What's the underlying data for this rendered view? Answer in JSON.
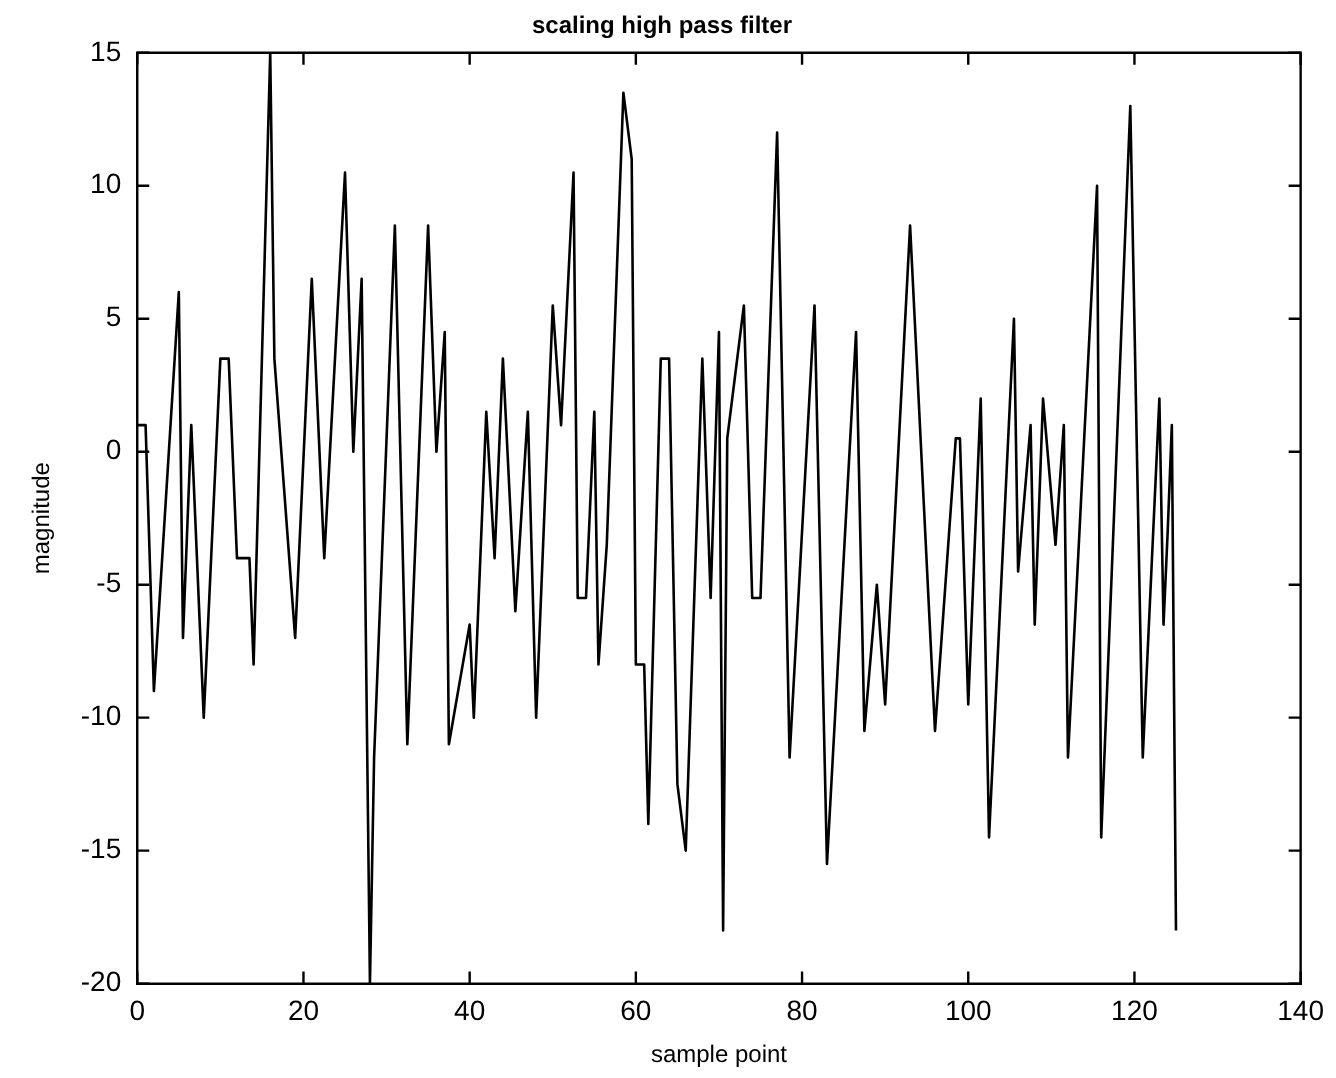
{
  "chart_data": {
    "type": "line",
    "title": "scaling high pass filter",
    "xlabel": "sample point",
    "ylabel": "magnitude",
    "x": [
      0,
      1,
      2,
      5,
      5.5,
      6.5,
      8,
      10,
      11,
      12,
      13.5,
      14,
      16,
      16.5,
      19,
      21,
      22.5,
      25,
      26,
      27,
      28,
      28.5,
      31,
      32.5,
      35,
      36,
      37,
      37.5,
      40,
      40.5,
      42,
      43,
      44,
      45.5,
      47,
      48,
      50,
      51,
      52.5,
      53,
      54,
      55,
      55.5,
      56.5,
      58.5,
      59.5,
      60,
      61,
      61.5,
      63,
      64,
      65,
      66,
      68,
      69,
      70,
      70.5,
      71,
      73,
      74,
      75,
      77,
      78.5,
      81.5,
      83,
      86.5,
      87.5,
      89,
      90,
      93,
      96,
      98.5,
      99,
      100,
      101.5,
      102.5,
      105.5,
      106,
      107.5,
      108,
      109,
      110.5,
      111.5,
      112,
      115.5,
      116,
      119.5,
      121,
      123,
      123.5,
      124,
      124.5,
      125
    ],
    "series": [
      {
        "color": "#000000",
        "values": [
          1,
          1,
          -9,
          6,
          -7,
          1,
          -10,
          3.5,
          3.5,
          -4,
          -4,
          -8,
          15,
          3.5,
          -7,
          6.5,
          -4,
          10.5,
          0,
          6.5,
          -20,
          -11.5,
          8.5,
          -11,
          8.5,
          0,
          4.5,
          -11,
          -6.5,
          -10,
          1.5,
          -4,
          3.5,
          -6,
          1.5,
          -10,
          5.5,
          1,
          10.5,
          -5.5,
          -5.5,
          1.5,
          -8,
          -3.5,
          13.5,
          11,
          -8,
          -8,
          -14,
          3.5,
          3.5,
          -12.5,
          -15,
          3.5,
          -5.5,
          4.5,
          -18,
          0.5,
          5.5,
          -5.5,
          -5.5,
          12,
          -11.5,
          5.5,
          -15.5,
          4.5,
          -10.5,
          -5,
          -9.5,
          8.5,
          -10.5,
          0.5,
          0.5,
          -9.5,
          2,
          -14.5,
          5,
          -4.5,
          1,
          -6.5,
          2,
          -3.5,
          1,
          -11.5,
          10,
          -14.5,
          13,
          -11.5,
          2,
          -6.5,
          -3,
          1,
          -18
        ]
      }
    ],
    "xlim": [
      0,
      140
    ],
    "xticks": [
      0,
      20,
      40,
      60,
      80,
      100,
      120,
      140
    ],
    "ylim": [
      -20,
      15
    ],
    "yticks": [
      -20,
      -15,
      -10,
      -5,
      0,
      5,
      10,
      15
    ],
    "grid": false,
    "legend": false,
    "marker": "none",
    "line_style": "solid"
  }
}
